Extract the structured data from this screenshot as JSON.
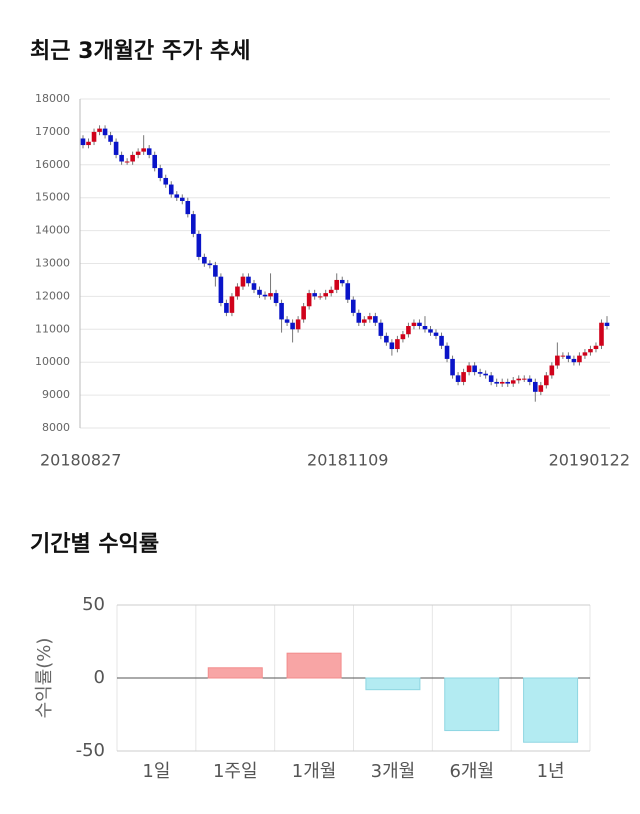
{
  "chart_data": [
    {
      "type": "candlestick",
      "title": "최근 3개월간 주가 추세",
      "categories": [
        "20180827",
        null,
        null,
        null,
        null,
        null,
        null,
        null,
        null,
        null,
        null,
        null,
        null,
        null,
        null,
        null,
        null,
        null,
        null,
        null,
        null,
        null,
        null,
        null,
        null,
        null,
        null,
        null,
        null,
        null,
        null,
        null,
        null,
        null,
        null,
        null,
        null,
        null,
        null,
        null,
        null,
        null,
        null,
        null,
        null,
        null,
        null,
        null,
        "20181109",
        null,
        null,
        null,
        null,
        null,
        null,
        null,
        null,
        null,
        null,
        null,
        null,
        null,
        null,
        null,
        null,
        null,
        null,
        null,
        null,
        null,
        null,
        null,
        null,
        null,
        null,
        null,
        null,
        null,
        null,
        null,
        null,
        null,
        null,
        null,
        null,
        null,
        null,
        null,
        null,
        null,
        null,
        null,
        null,
        null,
        null,
        "20190122"
      ],
      "open": [
        16800,
        16600,
        16700,
        17000,
        17100,
        16900,
        16700,
        16300,
        16100,
        16100,
        16300,
        16400,
        16500,
        16300,
        15900,
        15600,
        15400,
        15100,
        15000,
        14900,
        14500,
        13900,
        13200,
        13000,
        12950,
        12600,
        11800,
        11500,
        12000,
        12300,
        12600,
        12400,
        12200,
        12050,
        12000,
        12100,
        11800,
        11300,
        11200,
        11000,
        11300,
        11700,
        12100,
        12000,
        12000,
        12100,
        12200,
        12500,
        12400,
        11900,
        11500,
        11200,
        11300,
        11400,
        11200,
        10800,
        10600,
        10400,
        10700,
        10850,
        11100,
        11200,
        11100,
        11000,
        10900,
        10800,
        10500,
        10100,
        9600,
        9400,
        9700,
        9900,
        9700,
        9650,
        9600,
        9400,
        9350,
        9400,
        9350,
        9450,
        9500,
        9500,
        9400,
        9100,
        9300,
        9600,
        9900,
        10200,
        10200,
        10100,
        10000,
        10200,
        10300,
        10400,
        10500,
        11200
      ],
      "high": [
        16900,
        16800,
        17100,
        17200,
        17200,
        17000,
        16800,
        16400,
        16200,
        16400,
        16500,
        16900,
        16600,
        16400,
        16000,
        15700,
        15500,
        15200,
        15100,
        15000,
        14600,
        14000,
        13300,
        13100,
        13050,
        12700,
        11900,
        12100,
        12400,
        12700,
        12700,
        12500,
        12300,
        12150,
        12700,
        12200,
        11900,
        11400,
        11300,
        11400,
        11800,
        12200,
        12200,
        12100,
        12200,
        12300,
        12700,
        12600,
        12500,
        12000,
        11600,
        11400,
        11500,
        11500,
        11300,
        10900,
        10700,
        10800,
        10950,
        11200,
        11300,
        11300,
        11400,
        11100,
        11000,
        10900,
        10600,
        10200,
        9700,
        9800,
        10000,
        10000,
        9800,
        9750,
        9700,
        9500,
        9500,
        9500,
        9550,
        9600,
        9600,
        9600,
        9500,
        9400,
        9700,
        10000,
        10600,
        10300,
        10300,
        10200,
        10300,
        10400,
        10500,
        10600,
        11300,
        11400
      ],
      "low": [
        16500,
        16500,
        16600,
        16900,
        16800,
        16600,
        16200,
        16000,
        16000,
        16000,
        16200,
        16300,
        16200,
        15800,
        15500,
        15300,
        15000,
        14900,
        14800,
        14400,
        13800,
        13100,
        12900,
        12850,
        12300,
        11700,
        11400,
        11400,
        11900,
        12200,
        12300,
        12100,
        11950,
        11900,
        11900,
        11700,
        10900,
        11100,
        10600,
        10900,
        11200,
        11600,
        11900,
        11900,
        11900,
        12000,
        12100,
        12300,
        11800,
        11400,
        11100,
        11100,
        11200,
        11100,
        10700,
        10500,
        10200,
        10300,
        10600,
        10750,
        11000,
        11000,
        10900,
        10800,
        10700,
        10400,
        10000,
        9500,
        9300,
        9300,
        9600,
        9600,
        9550,
        9500,
        9300,
        9250,
        9250,
        9250,
        9250,
        9350,
        9400,
        9300,
        8800,
        9000,
        9200,
        9500,
        9800,
        10100,
        10000,
        9900,
        9900,
        10100,
        10200,
        10300,
        10400,
        11000
      ],
      "close": [
        16600,
        16700,
        17000,
        17100,
        16900,
        16700,
        16300,
        16100,
        16100,
        16300,
        16400,
        16500,
        16300,
        15900,
        15600,
        15400,
        15100,
        15000,
        14900,
        14500,
        13900,
        13200,
        13000,
        12950,
        12600,
        11800,
        11500,
        12000,
        12300,
        12600,
        12400,
        12200,
        12050,
        12000,
        12100,
        11800,
        11300,
        11200,
        11000,
        11300,
        11700,
        12100,
        12000,
        12000,
        12100,
        12200,
        12500,
        12400,
        11900,
        11500,
        11200,
        11300,
        11400,
        11200,
        10800,
        10600,
        10400,
        10700,
        10850,
        11100,
        11200,
        11100,
        11000,
        10900,
        10800,
        10500,
        10100,
        9600,
        9400,
        9700,
        9900,
        9700,
        9650,
        9600,
        9400,
        9350,
        9400,
        9350,
        9450,
        9500,
        9500,
        9400,
        9100,
        9300,
        9600,
        9900,
        10200,
        10200,
        10100,
        10000,
        10200,
        10300,
        10400,
        10500,
        11200,
        11100
      ],
      "up_color": "#d0021b",
      "down_color": "#0a14c8",
      "ylim": [
        8000,
        18000
      ],
      "yticks": [
        8000,
        9000,
        10000,
        11000,
        12000,
        13000,
        14000,
        15000,
        16000,
        17000,
        18000
      ],
      "grid": true
    },
    {
      "type": "bar",
      "title": "기간별 수익률",
      "ylabel": "수익률(%)",
      "categories": [
        "1일",
        "1주일",
        "1개월",
        "3개월",
        "6개월",
        "1년"
      ],
      "values": [
        0,
        7,
        17,
        -8,
        -36,
        -44
      ],
      "positive_color": "#f8a5a5",
      "negative_color": "#b3ebf2",
      "ylim": [
        -50,
        50
      ],
      "yticks": [
        -50,
        0,
        50
      ],
      "grid": true
    }
  ]
}
